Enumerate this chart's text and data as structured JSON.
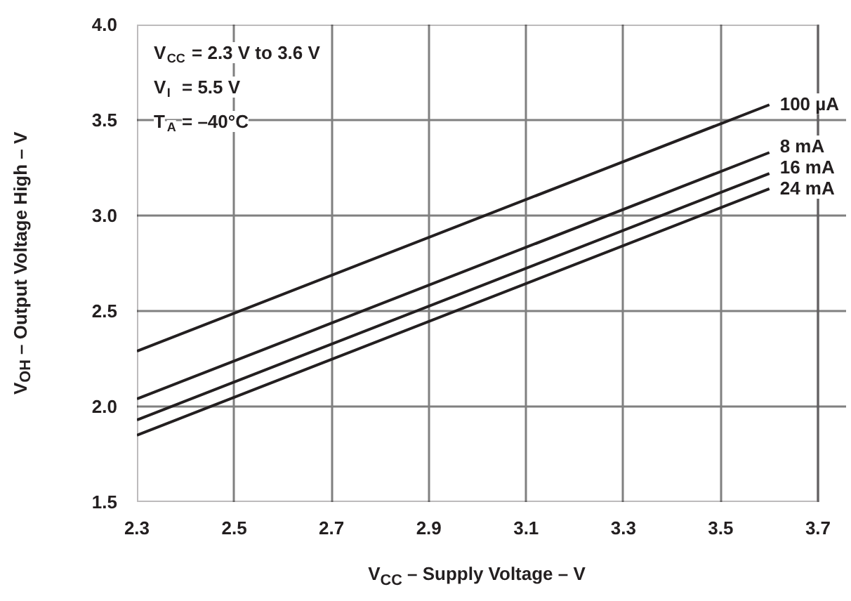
{
  "chart_data": {
    "type": "line",
    "xlabel": "V$_{CC}$ – Supply Voltage – V",
    "ylabel": "V$_{OH}$ – Output Voltage High – V",
    "annotations": [
      "V$_{CC}$ = 2.3 V to 3.6 V",
      "V$_{I}$ = 5.5 V",
      "T$_{A}$ = –40°C"
    ],
    "x": [
      2.3,
      3.6
    ],
    "series": [
      {
        "name": "100 µA",
        "color": "#231f20",
        "values": [
          2.29,
          3.58
        ]
      },
      {
        "name": "8 mA",
        "color": "#231f20",
        "values": [
          2.04,
          3.33
        ]
      },
      {
        "name": "16 mA",
        "color": "#231f20",
        "values": [
          1.93,
          3.22
        ]
      },
      {
        "name": "24 mA",
        "color": "#231f20",
        "values": [
          1.85,
          3.14
        ]
      }
    ],
    "xlim": [
      2.3,
      3.7
    ],
    "xticks": [
      2.3,
      2.5,
      2.7,
      2.9,
      3.1,
      3.3,
      3.5,
      3.7
    ],
    "ylim": [
      1.5,
      4.0
    ],
    "yticks": [
      1.5,
      {
        "value": 2,
        "label": "2.0"
      },
      2.5,
      {
        "value": 3,
        "label": "3.0"
      },
      3.5,
      {
        "value": 4,
        "label": "4.0"
      }
    ],
    "grid": true,
    "marker": "none",
    "line_style": "solid"
  }
}
